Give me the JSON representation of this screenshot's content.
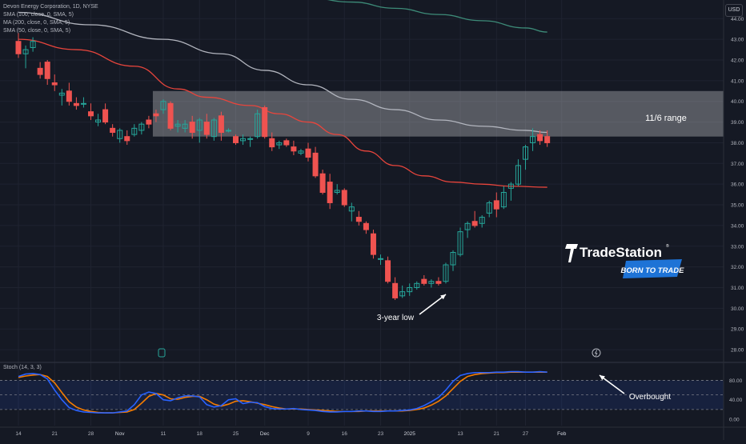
{
  "legend": {
    "title": "Devon Energy Corporation, 1D, NYSE",
    "sma100": "SMA (100, close, 0, SMA, 5)",
    "ma200": "MA (200, close, 0, SMA, 5)",
    "sma50": "SMA (50, close, 0, SMA, 5)"
  },
  "currency": "USD",
  "stoch_label": "Stoch (14, 3, 3)",
  "annotations": {
    "range": "11/6 range",
    "low": "3-year low",
    "overbought": "Overbought"
  },
  "logo": {
    "brand": "TradeStation",
    "tagline": "BORN TO TRADE"
  },
  "colors": {
    "background": "#151924",
    "up": "#26a69a",
    "down": "#ef5350",
    "sma50": "#e8453c",
    "sma100": "#b2b5be",
    "ma200": "#3d8b78",
    "stoch_k": "#2962ff",
    "stoch_d": "#f57c00"
  },
  "chart_data": {
    "type": "candlestick",
    "y_axis": {
      "ticks": [
        "44.00",
        "43.00",
        "42.00",
        "41.00",
        "40.00",
        "39.00",
        "38.00",
        "37.00",
        "36.00",
        "35.00",
        "34.00",
        "33.00",
        "32.00",
        "31.00",
        "30.00",
        "29.00",
        "28.00"
      ],
      "ylim": [
        27.5,
        44.9
      ]
    },
    "x_axis": {
      "ticks": [
        {
          "label": "14",
          "bar": 0
        },
        {
          "label": "21",
          "bar": 5
        },
        {
          "label": "28",
          "bar": 10
        },
        {
          "label": "Nov",
          "bar": 14
        },
        {
          "label": "11",
          "bar": 20
        },
        {
          "label": "18",
          "bar": 25
        },
        {
          "label": "25",
          "bar": 30
        },
        {
          "label": "Dec",
          "bar": 34
        },
        {
          "label": "9",
          "bar": 40
        },
        {
          "label": "16",
          "bar": 45
        },
        {
          "label": "23",
          "bar": 50
        },
        {
          "label": "2025",
          "bar": 54
        },
        {
          "label": "13",
          "bar": 61
        },
        {
          "label": "21",
          "bar": 66
        },
        {
          "label": "27",
          "bar": 70
        },
        {
          "label": "Feb",
          "bar": 75
        }
      ]
    },
    "ohlc": [
      [
        42.9,
        43.3,
        42.1,
        42.3
      ],
      [
        42.3,
        42.7,
        41.6,
        42.5
      ],
      [
        42.6,
        43.1,
        42.4,
        42.9
      ],
      [
        41.6,
        41.9,
        41.1,
        41.3
      ],
      [
        41.9,
        42.0,
        40.8,
        41.1
      ],
      [
        40.9,
        41.3,
        40.5,
        40.8
      ],
      [
        40.3,
        40.6,
        39.8,
        40.4
      ],
      [
        40.5,
        40.9,
        39.8,
        40.0
      ],
      [
        39.9,
        40.2,
        39.6,
        39.8
      ],
      [
        39.9,
        40.2,
        39.7,
        39.9
      ],
      [
        39.5,
        39.9,
        39.1,
        39.3
      ],
      [
        39.0,
        39.4,
        38.8,
        39.1
      ],
      [
        39.6,
        39.9,
        38.9,
        39.0
      ],
      [
        38.7,
        38.9,
        38.3,
        38.5
      ],
      [
        38.2,
        38.7,
        38.0,
        38.6
      ],
      [
        38.3,
        38.6,
        37.9,
        38.1
      ],
      [
        38.4,
        38.9,
        38.3,
        38.7
      ],
      [
        38.6,
        39.0,
        38.4,
        38.9
      ],
      [
        39.1,
        39.3,
        38.7,
        38.9
      ],
      [
        39.4,
        39.6,
        39.0,
        39.3
      ],
      [
        39.6,
        40.1,
        39.4,
        40.0
      ],
      [
        39.9,
        40.0,
        38.6,
        38.7
      ],
      [
        38.8,
        39.1,
        38.5,
        38.9
      ],
      [
        38.7,
        39.1,
        38.5,
        38.9
      ],
      [
        39.0,
        39.3,
        38.2,
        38.5
      ],
      [
        38.6,
        39.2,
        38.0,
        39.1
      ],
      [
        39.0,
        39.4,
        38.2,
        38.4
      ],
      [
        38.3,
        39.2,
        38.1,
        39.1
      ],
      [
        39.3,
        39.5,
        38.1,
        38.5
      ],
      [
        38.6,
        38.7,
        38.5,
        38.6
      ],
      [
        38.3,
        38.4,
        37.9,
        38.0
      ],
      [
        38.1,
        38.4,
        37.9,
        38.2
      ],
      [
        38.2,
        38.3,
        37.8,
        38.2
      ],
      [
        38.3,
        39.6,
        38.2,
        39.4
      ],
      [
        39.7,
        39.8,
        38.2,
        38.3
      ],
      [
        38.2,
        38.5,
        37.6,
        37.8
      ],
      [
        37.9,
        38.1,
        37.7,
        38.0
      ],
      [
        38.1,
        38.2,
        37.8,
        37.9
      ],
      [
        37.8,
        38.1,
        37.4,
        37.6
      ],
      [
        37.5,
        37.7,
        37.4,
        37.6
      ],
      [
        37.7,
        38.0,
        37.1,
        37.3
      ],
      [
        37.5,
        37.8,
        36.3,
        36.4
      ],
      [
        36.5,
        36.7,
        35.5,
        35.6
      ],
      [
        36.1,
        36.5,
        34.8,
        35.1
      ],
      [
        35.6,
        36.0,
        35.5,
        35.7
      ],
      [
        35.7,
        35.8,
        34.9,
        35.0
      ],
      [
        34.7,
        35.1,
        34.2,
        34.9
      ],
      [
        34.4,
        34.7,
        34.0,
        34.2
      ],
      [
        34.1,
        34.2,
        33.6,
        33.8
      ],
      [
        33.6,
        33.8,
        32.4,
        32.6
      ],
      [
        32.4,
        32.6,
        32.1,
        32.4
      ],
      [
        32.3,
        32.5,
        31.2,
        31.3
      ],
      [
        31.2,
        31.5,
        30.4,
        30.5
      ],
      [
        30.6,
        31.1,
        30.5,
        30.8
      ],
      [
        30.8,
        31.2,
        30.6,
        31.0
      ],
      [
        31.0,
        31.3,
        30.9,
        31.2
      ],
      [
        31.4,
        31.6,
        31.1,
        31.2
      ],
      [
        31.2,
        31.4,
        31.0,
        31.3
      ],
      [
        31.3,
        31.5,
        31.1,
        31.2
      ],
      [
        31.3,
        32.2,
        31.2,
        32.1
      ],
      [
        32.1,
        32.8,
        31.8,
        32.7
      ],
      [
        32.6,
        33.9,
        32.5,
        33.7
      ],
      [
        33.8,
        34.2,
        33.4,
        34.1
      ],
      [
        34.2,
        34.7,
        33.9,
        34.0
      ],
      [
        34.1,
        34.5,
        33.9,
        34.4
      ],
      [
        34.6,
        35.2,
        34.4,
        35.1
      ],
      [
        35.2,
        35.6,
        34.4,
        34.8
      ],
      [
        34.9,
        35.9,
        34.8,
        35.6
      ],
      [
        35.8,
        36.1,
        35.2,
        36.0
      ],
      [
        36.0,
        37.2,
        35.9,
        36.9
      ],
      [
        37.2,
        37.9,
        36.7,
        37.8
      ],
      [
        38.0,
        38.7,
        37.6,
        38.3
      ],
      [
        38.4,
        38.6,
        37.9,
        38.1
      ],
      [
        38.3,
        38.6,
        37.8,
        38.0
      ]
    ],
    "highlight_range": {
      "label": "11/6 range",
      "high": 40.5,
      "low": 38.3,
      "start_bar": 19
    },
    "sma50": [
      [
        0,
        43.0
      ],
      [
        8,
        42.5
      ],
      [
        16,
        41.7
      ],
      [
        22,
        40.6
      ],
      [
        26,
        40.2
      ],
      [
        32,
        39.8
      ],
      [
        36,
        39.4
      ],
      [
        40,
        39.0
      ],
      [
        44,
        38.4
      ],
      [
        48,
        37.6
      ],
      [
        52,
        36.9
      ],
      [
        56,
        36.4
      ],
      [
        60,
        36.1
      ],
      [
        64,
        36.0
      ],
      [
        68,
        35.9
      ],
      [
        73,
        35.85
      ]
    ],
    "sma100": [
      [
        0,
        44.3
      ],
      [
        10,
        43.7
      ],
      [
        20,
        43.0
      ],
      [
        28,
        42.3
      ],
      [
        34,
        41.5
      ],
      [
        40,
        40.8
      ],
      [
        46,
        40.1
      ],
      [
        52,
        39.6
      ],
      [
        58,
        39.1
      ],
      [
        64,
        38.8
      ],
      [
        70,
        38.6
      ],
      [
        73,
        38.5
      ]
    ],
    "ma200": [
      [
        14,
        45.4
      ],
      [
        24,
        45.3
      ],
      [
        32,
        45.2
      ],
      [
        40,
        45.0
      ],
      [
        46,
        44.8
      ],
      [
        52,
        44.5
      ],
      [
        58,
        44.2
      ],
      [
        64,
        43.9
      ],
      [
        70,
        43.55
      ],
      [
        73,
        43.35
      ]
    ],
    "stochastic": {
      "levels": [
        80,
        50,
        20
      ],
      "ticks": [
        "80.00",
        "40.00",
        "0.00"
      ],
      "k": [
        88,
        93,
        94,
        92,
        83,
        60,
        40,
        24,
        18,
        15,
        14,
        13,
        13,
        13,
        15,
        17,
        30,
        50,
        56,
        53,
        40,
        38,
        44,
        48,
        48,
        46,
        30,
        25,
        28,
        40,
        42,
        32,
        35,
        34,
        26,
        22,
        21,
        21,
        22,
        20,
        19,
        18,
        16,
        15,
        15,
        16,
        16,
        17,
        17,
        16,
        16,
        17,
        17,
        18,
        19,
        22,
        28,
        36,
        45,
        60,
        78,
        90,
        94,
        96,
        96,
        96,
        97,
        97,
        98,
        98,
        97,
        97,
        98,
        97
      ],
      "d": [
        86,
        89,
        91,
        92,
        88,
        75,
        55,
        36,
        25,
        19,
        16,
        14,
        13,
        13,
        14,
        15,
        20,
        33,
        47,
        53,
        50,
        42,
        41,
        45,
        47,
        47,
        40,
        31,
        27,
        31,
        37,
        38,
        36,
        33,
        30,
        26,
        23,
        21,
        21,
        21,
        20,
        19,
        18,
        17,
        16,
        16,
        16,
        16,
        17,
        17,
        17,
        17,
        17,
        17,
        18,
        20,
        23,
        29,
        37,
        48,
        63,
        78,
        88,
        92,
        94,
        95,
        96,
        96,
        97,
        97,
        97,
        97,
        97,
        97
      ]
    }
  }
}
